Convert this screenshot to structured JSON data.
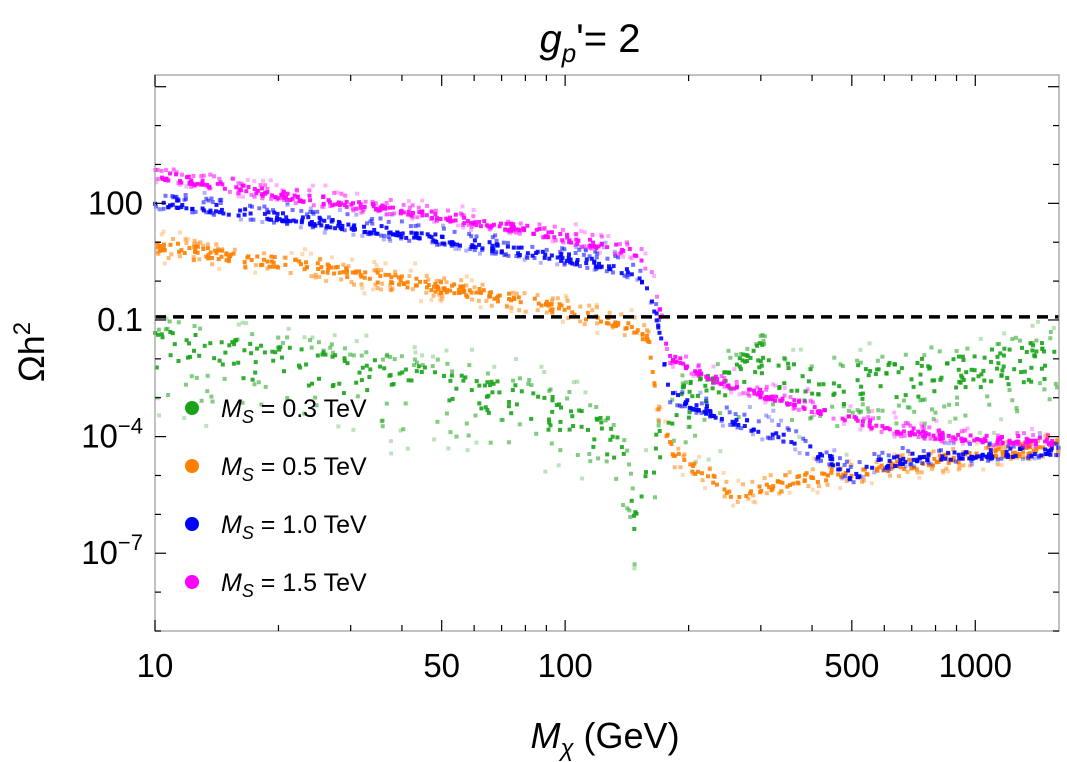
{
  "chart_data": {
    "type": "scatter",
    "title": {
      "main": "g",
      "sub": "p",
      "rest": "'= 2"
    },
    "xlabel": {
      "main": "M",
      "sub": "χ",
      "rest": " (GeV)"
    },
    "ylabel": {
      "main": "Ωh",
      "sup": "2"
    },
    "xscale": "log",
    "yscale": "log",
    "xlim": [
      10,
      1600
    ],
    "ylim": [
      1e-09,
      200000
    ],
    "xticks": [
      {
        "value": 10,
        "label": "10"
      },
      {
        "value": 50,
        "label": "50"
      },
      {
        "value": 100,
        "label": "100"
      },
      {
        "value": 500,
        "label": "500"
      },
      {
        "value": 1000,
        "label": "1000"
      }
    ],
    "yticks": [
      {
        "value": 100,
        "label": "100"
      },
      {
        "value": 0.1,
        "label": "0.1"
      },
      {
        "value": 0.0001,
        "base": "10",
        "exp": "−4"
      },
      {
        "value": 1e-07,
        "base": "10",
        "exp": "−7"
      }
    ],
    "grid": false,
    "legend_position": "bottom-left",
    "reference_line": {
      "y": 0.12,
      "style": "dashed",
      "color": "#000000"
    },
    "series": [
      {
        "name": {
          "main": "M",
          "sub": "S",
          "rest": " = 0.3 TeV"
        },
        "color": "#1aa31a",
        "mass_gev": 300,
        "band": [
          [
            10,
            0.03
          ],
          [
            20,
            0.012
          ],
          [
            40,
            0.004
          ],
          [
            80,
            0.0012
          ],
          [
            120,
            0.00025
          ],
          [
            140,
            3e-05
          ],
          [
            150,
            5e-07
          ],
          [
            160,
            3e-05
          ],
          [
            190,
            0.001
          ],
          [
            230,
            0.003
          ],
          [
            280,
            0.008
          ],
          [
            300,
            0.015
          ],
          [
            330,
            0.005
          ],
          [
            400,
            0.003
          ],
          [
            600,
            0.004
          ],
          [
            1000,
            0.008
          ],
          [
            1600,
            0.017
          ]
        ],
        "scatter_range_decades": [
          1.8,
          0.7
        ]
      },
      {
        "name": {
          "main": "M",
          "sub": "S",
          "rest": " = 0.5 TeV"
        },
        "color": "#ff8000",
        "mass_gev": 500,
        "band": [
          [
            10,
            8
          ],
          [
            20,
            3
          ],
          [
            40,
            1
          ],
          [
            80,
            0.3
          ],
          [
            120,
            0.12
          ],
          [
            150,
            0.06
          ],
          [
            160,
            0.03
          ],
          [
            170,
            0.0003
          ],
          [
            185,
            3e-05
          ],
          [
            230,
            8e-06
          ],
          [
            260,
            3e-06
          ],
          [
            300,
            5e-06
          ],
          [
            400,
            9e-06
          ],
          [
            500,
            1.2e-05
          ],
          [
            700,
            2e-05
          ],
          [
            1000,
            3e-05
          ],
          [
            1600,
            6e-05
          ]
        ],
        "scatter_range_decades": [
          0.35,
          0.35
        ]
      },
      {
        "name": {
          "main": "M",
          "sub": "S",
          "rest": " = 1.0 TeV"
        },
        "color": "#0000ff",
        "mass_gev": 1000,
        "band": [
          [
            10,
            100
          ],
          [
            20,
            40
          ],
          [
            40,
            15
          ],
          [
            80,
            5
          ],
          [
            120,
            2.5
          ],
          [
            150,
            1.5
          ],
          [
            160,
            0.6
          ],
          [
            170,
            0.05
          ],
          [
            180,
            0.001
          ],
          [
            250,
            0.00025
          ],
          [
            350,
            8e-05
          ],
          [
            450,
            2e-05
          ],
          [
            500,
            8e-06
          ],
          [
            550,
            1.5e-05
          ],
          [
            700,
            2.5e-05
          ],
          [
            1000,
            3e-05
          ],
          [
            1600,
            4e-05
          ]
        ],
        "scatter_range_decades": [
          0.15,
          0.45
        ]
      },
      {
        "name": {
          "main": "M",
          "sub": "S",
          "rest": " = 1.5 TeV"
        },
        "color": "#ff00ff",
        "mass_gev": 1500,
        "band": [
          [
            10,
            500
          ],
          [
            20,
            150
          ],
          [
            40,
            60
          ],
          [
            80,
            20
          ],
          [
            120,
            8
          ],
          [
            150,
            5
          ],
          [
            160,
            2
          ],
          [
            170,
            0.15
          ],
          [
            180,
            0.01
          ],
          [
            250,
            0.002
          ],
          [
            400,
            0.0005
          ],
          [
            600,
            0.00015
          ],
          [
            800,
            0.0001
          ],
          [
            1000,
            8e-05
          ],
          [
            1600,
            7e-05
          ]
        ],
        "scatter_range_decades": [
          0.15,
          0.35
        ]
      }
    ]
  }
}
